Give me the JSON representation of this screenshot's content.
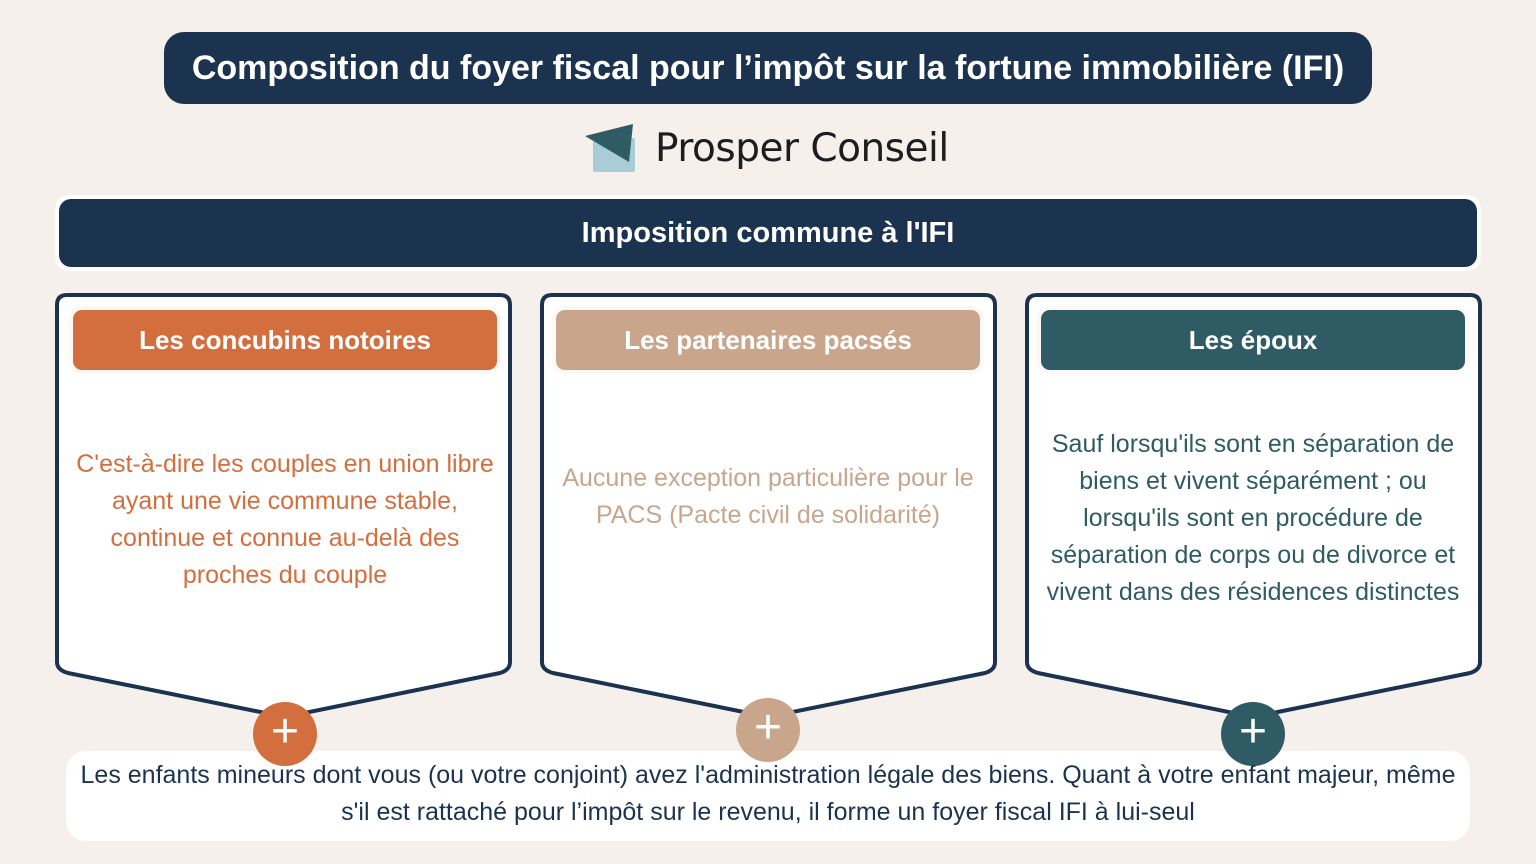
{
  "title": "Composition du foyer fiscal pour l’impôt sur la fortune immobilière (IFI)",
  "brand": {
    "name": "Prosper Conseil",
    "logo_icon": "paper-plane-envelope-icon"
  },
  "band": "Imposition commune à l'IFI",
  "colors": {
    "navy": "#1c3350",
    "orange": "#d36e3f",
    "beige": "#c9a68b",
    "teal": "#2f5b64",
    "background": "#f5f0ec"
  },
  "cards": [
    {
      "heading": "Les concubins notoires",
      "text": "C'est-à-dire les couples en union libre ayant une vie commune stable, continue et connue au-delà des proches du couple",
      "plus": "+"
    },
    {
      "heading": "Les partenaires pacsés",
      "text": "Aucune exception particulière pour le PACS (Pacte civil de solidarité)",
      "plus": "+"
    },
    {
      "heading": "Les époux",
      "text": "Sauf lorsqu'ils sont en séparation de biens et vivent séparément ; ou lorsqu'ils sont en procédure de séparation de corps ou de divorce et vivent dans des résidences distinctes",
      "plus": "+"
    }
  ],
  "footer": "Les enfants mineurs dont vous (ou votre conjoint) avez l'administration légale des biens. Quant à votre enfant majeur, même s'il est rattaché pour l’impôt sur le revenu, il forme un foyer fiscal IFI à lui-seul"
}
